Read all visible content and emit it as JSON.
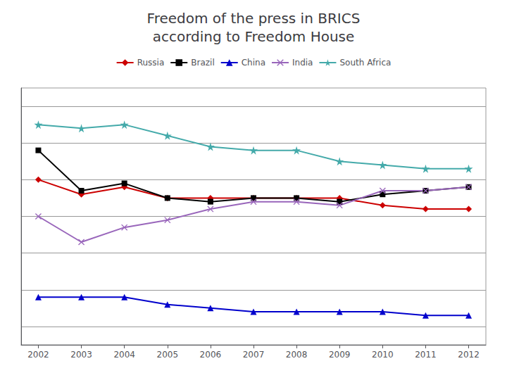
{
  "chart_data": {
    "type": "line",
    "title": "Freedom of the press in BRICS\naccording to Freedom House",
    "x": [
      2002,
      2003,
      2004,
      2005,
      2006,
      2007,
      2008,
      2009,
      2010,
      2011,
      2012
    ],
    "series": [
      {
        "name": "Russia",
        "color": "#cc0000",
        "marker": "diamond",
        "values": [
          60,
          56,
          58,
          55,
          55,
          55,
          55,
          55,
          53,
          52,
          52
        ]
      },
      {
        "name": "Brazil",
        "color": "#000000",
        "marker": "square",
        "values": [
          68,
          57,
          59,
          55,
          54,
          55,
          55,
          54,
          56,
          57,
          58
        ]
      },
      {
        "name": "China",
        "color": "#0000cc",
        "marker": "triangle",
        "values": [
          28,
          28,
          28,
          26,
          25,
          24,
          24,
          24,
          24,
          23,
          23
        ]
      },
      {
        "name": "India",
        "color": "#9966bb",
        "marker": "x",
        "values": [
          50,
          43,
          47,
          49,
          52,
          54,
          54,
          53,
          57,
          57,
          58
        ]
      },
      {
        "name": "South Africa",
        "color": "#44aaaa",
        "marker": "star",
        "values": [
          75,
          74,
          75,
          72,
          69,
          68,
          68,
          65,
          64,
          63,
          63
        ]
      }
    ],
    "xlim": [
      2001.6,
      2012.4
    ],
    "xticks": [
      2002,
      2003,
      2004,
      2005,
      2006,
      2007,
      2008,
      2009,
      2010,
      2011,
      2012
    ],
    "ylim": [
      15,
      85
    ],
    "yticks": [
      20,
      30,
      40,
      50,
      60,
      70,
      80
    ],
    "grid": true,
    "legend": "top",
    "tick_labels": "x"
  }
}
